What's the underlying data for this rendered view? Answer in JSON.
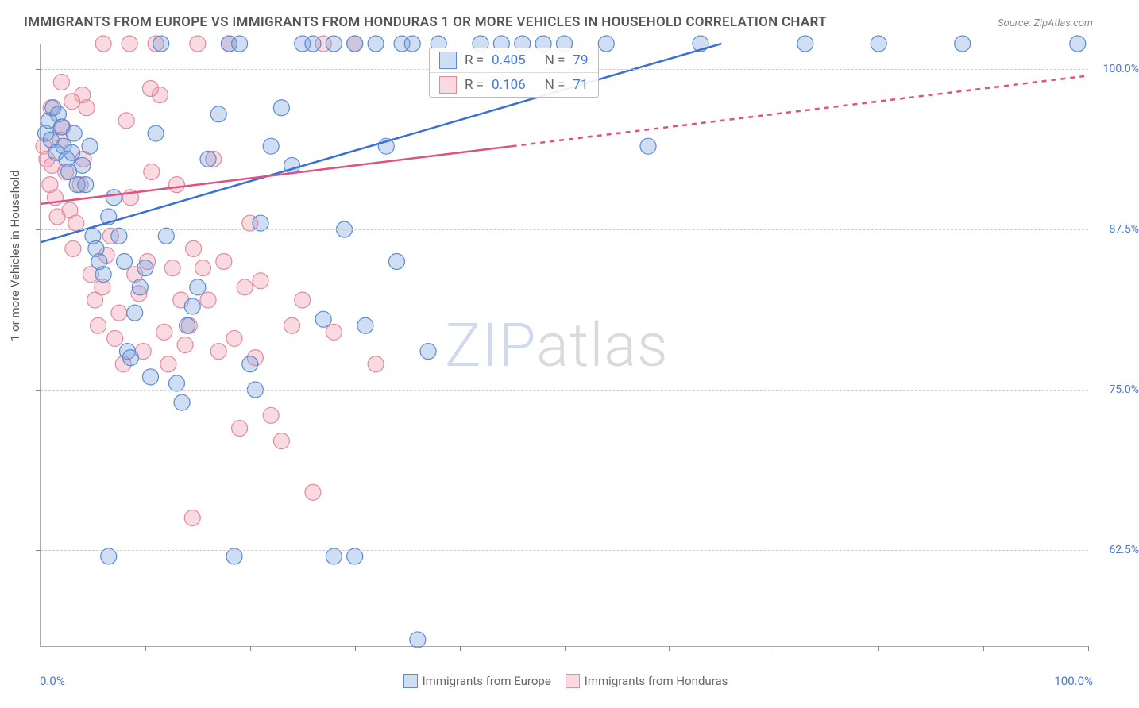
{
  "title": "IMMIGRANTS FROM EUROPE VS IMMIGRANTS FROM HONDURAS 1 OR MORE VEHICLES IN HOUSEHOLD CORRELATION CHART",
  "source": "Source: ZipAtlas.com",
  "ylabel": "1 or more Vehicles in Household",
  "watermark_a": "ZIP",
  "watermark_b": "atlas",
  "colors": {
    "series_a_fill": "rgba(120,160,220,0.35)",
    "series_a_stroke": "#5a8bd6",
    "series_b_fill": "rgba(240,150,170,0.35)",
    "series_b_stroke": "#e28aa0",
    "line_a": "#3a6fd8",
    "line_b": "#e05080",
    "accent_text": "#4a78d0",
    "grid": "#cccccc",
    "axis": "#aaaaaa"
  },
  "x_range": [
    0,
    100
  ],
  "y_range": [
    55,
    102
  ],
  "x_ticks": [
    0,
    10,
    20,
    30,
    40,
    50,
    60,
    70,
    80,
    90,
    100
  ],
  "y_gridlines": [
    {
      "v": 62.5,
      "label": "62.5%"
    },
    {
      "v": 75.0,
      "label": "75.0%"
    },
    {
      "v": 87.5,
      "label": "87.5%"
    },
    {
      "v": 100.0,
      "label": "100.0%"
    }
  ],
  "x_axis_end_labels": {
    "left": "0.0%",
    "right": "100.0%"
  },
  "bottom_legend": [
    {
      "label": "Immigrants from Europe",
      "series": "a"
    },
    {
      "label": "Immigrants from Honduras",
      "series": "b"
    }
  ],
  "stat_legend": [
    {
      "series": "a",
      "r_label": "R =",
      "r": "0.405",
      "n_label": "N =",
      "n": "79"
    },
    {
      "series": "b",
      "r_label": "R =",
      "r": "0.106",
      "n_label": "N =",
      "n": "71"
    }
  ],
  "trend_lines": {
    "a": {
      "x1": 0,
      "y1": 86.5,
      "x2": 65,
      "y2": 102,
      "dash_after": false
    },
    "b": {
      "x1": 0,
      "y1": 89.5,
      "x2": 45,
      "y2": 94,
      "dash_to_x": 100,
      "dash_to_y": 99.5
    }
  },
  "marker_radius": 10,
  "series_a_points": [
    [
      0.5,
      95
    ],
    [
      0.8,
      96
    ],
    [
      1,
      94.5
    ],
    [
      1.2,
      97
    ],
    [
      1.5,
      93.5
    ],
    [
      1.7,
      96.5
    ],
    [
      2,
      95.5
    ],
    [
      2.2,
      94
    ],
    [
      2.5,
      93
    ],
    [
      2.7,
      92
    ],
    [
      3,
      93.5
    ],
    [
      3.2,
      95
    ],
    [
      3.5,
      91
    ],
    [
      4,
      92.5
    ],
    [
      4.3,
      91
    ],
    [
      4.7,
      94
    ],
    [
      5,
      87
    ],
    [
      5.3,
      86
    ],
    [
      5.6,
      85
    ],
    [
      6,
      84
    ],
    [
      6.5,
      88.5
    ],
    [
      7,
      90
    ],
    [
      7.5,
      87
    ],
    [
      8,
      85
    ],
    [
      8.3,
      78
    ],
    [
      8.6,
      77.5
    ],
    [
      9,
      81
    ],
    [
      9.5,
      83
    ],
    [
      10,
      84.5
    ],
    [
      10.5,
      76
    ],
    [
      11,
      95
    ],
    [
      11.5,
      102
    ],
    [
      12,
      87
    ],
    [
      13,
      75.5
    ],
    [
      13.5,
      74
    ],
    [
      14,
      80
    ],
    [
      14.5,
      81.5
    ],
    [
      15,
      83
    ],
    [
      16,
      93
    ],
    [
      17,
      96.5
    ],
    [
      18,
      102
    ],
    [
      19,
      102
    ],
    [
      20,
      77
    ],
    [
      20.5,
      75
    ],
    [
      21,
      88
    ],
    [
      22,
      94
    ],
    [
      23,
      97
    ],
    [
      24,
      92.5
    ],
    [
      25,
      102
    ],
    [
      26,
      102
    ],
    [
      27,
      80.5
    ],
    [
      28,
      62
    ],
    [
      28,
      102
    ],
    [
      29,
      87.5
    ],
    [
      30,
      102
    ],
    [
      31,
      80
    ],
    [
      32,
      102
    ],
    [
      33,
      94
    ],
    [
      34,
      85
    ],
    [
      34.5,
      102
    ],
    [
      35.5,
      102
    ],
    [
      36,
      55.5
    ],
    [
      37,
      78
    ],
    [
      38,
      102
    ],
    [
      18.5,
      62
    ],
    [
      6.5,
      62
    ],
    [
      30,
      62
    ],
    [
      42,
      102
    ],
    [
      44,
      102
    ],
    [
      46,
      102
    ],
    [
      48,
      102
    ],
    [
      50,
      102
    ],
    [
      54,
      102
    ],
    [
      58,
      94
    ],
    [
      63,
      102
    ],
    [
      73,
      102
    ],
    [
      80,
      102
    ],
    [
      88,
      102
    ],
    [
      99,
      102
    ]
  ],
  "series_b_points": [
    [
      0.3,
      94
    ],
    [
      0.6,
      93
    ],
    [
      0.9,
      91
    ],
    [
      1.1,
      92.5
    ],
    [
      1.4,
      90
    ],
    [
      1.6,
      88.5
    ],
    [
      1.9,
      94.5
    ],
    [
      2.1,
      95.5
    ],
    [
      2.4,
      92
    ],
    [
      2.8,
      89
    ],
    [
      3.1,
      86
    ],
    [
      3.4,
      88
    ],
    [
      3.8,
      91
    ],
    [
      4.1,
      93
    ],
    [
      4.4,
      97
    ],
    [
      4.8,
      84
    ],
    [
      5.2,
      82
    ],
    [
      5.5,
      80
    ],
    [
      5.9,
      83
    ],
    [
      6.3,
      85.5
    ],
    [
      6.7,
      87
    ],
    [
      7.1,
      79
    ],
    [
      7.5,
      81
    ],
    [
      7.9,
      77
    ],
    [
      8.2,
      96
    ],
    [
      8.6,
      90
    ],
    [
      9,
      84
    ],
    [
      9.4,
      82.5
    ],
    [
      9.8,
      78
    ],
    [
      10.2,
      85
    ],
    [
      10.6,
      92
    ],
    [
      11,
      102
    ],
    [
      11.4,
      98
    ],
    [
      11.8,
      79.5
    ],
    [
      12.2,
      77
    ],
    [
      12.6,
      84.5
    ],
    [
      13,
      91
    ],
    [
      13.4,
      82
    ],
    [
      13.8,
      78.5
    ],
    [
      14.2,
      80
    ],
    [
      14.6,
      86
    ],
    [
      15,
      102
    ],
    [
      15.5,
      84.5
    ],
    [
      16,
      82
    ],
    [
      16.5,
      93
    ],
    [
      17,
      78
    ],
    [
      17.5,
      85
    ],
    [
      18,
      102
    ],
    [
      18.5,
      79
    ],
    [
      19,
      72
    ],
    [
      19.5,
      83
    ],
    [
      20,
      88
    ],
    [
      20.5,
      77.5
    ],
    [
      21,
      83.5
    ],
    [
      22,
      73
    ],
    [
      23,
      71
    ],
    [
      24,
      80
    ],
    [
      25,
      82
    ],
    [
      26,
      67
    ],
    [
      14.5,
      65
    ],
    [
      27,
      102
    ],
    [
      28,
      79.5
    ],
    [
      30,
      102
    ],
    [
      32,
      77
    ],
    [
      10.5,
      98.5
    ],
    [
      8.5,
      102
    ],
    [
      6,
      102
    ],
    [
      4,
      98
    ],
    [
      3,
      97.5
    ],
    [
      2,
      99
    ],
    [
      1,
      97
    ]
  ]
}
